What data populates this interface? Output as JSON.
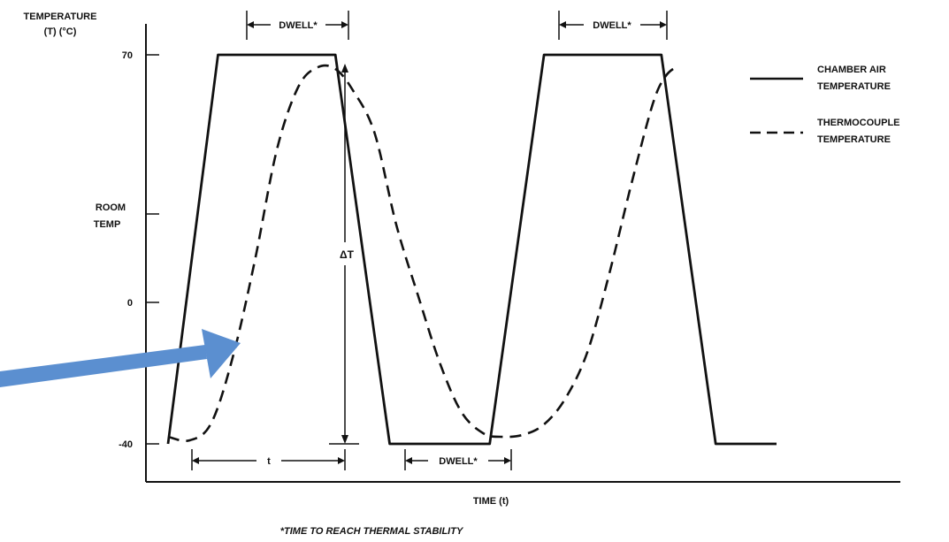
{
  "chart_data": {
    "type": "line",
    "ylabel_line1": "TEMPERATURE",
    "ylabel_line2": "(T) (°C)",
    "xlabel": "TIME (t)",
    "footnote": "*TIME TO REACH THERMAL STABILITY",
    "y_ticks": [
      {
        "value": 70,
        "label": "70"
      },
      {
        "value": 25,
        "label": "ROOM",
        "label2": "TEMP"
      },
      {
        "value": 0,
        "label": "0"
      },
      {
        "value": -40,
        "label": "-40"
      }
    ],
    "legend": [
      {
        "name": "CHAMBER AIR",
        "name2": "TEMPERATURE",
        "style": "solid"
      },
      {
        "name": "THERMOCOUPLE",
        "name2": "TEMPERATURE",
        "style": "dashed"
      }
    ],
    "series": [
      {
        "style": "solid",
        "x": [
          0,
          2.3,
          7.7,
          10.2,
          14.8,
          17.3,
          22.7,
          25.2,
          28
        ],
        "values": [
          -40,
          70,
          70,
          -40,
          -40,
          70,
          70,
          -40,
          -40
        ]
      },
      {
        "style": "dashed",
        "x": [
          0,
          1,
          2,
          3,
          4,
          5,
          6,
          6.9,
          7.7,
          8.5,
          9.5,
          10.5,
          11.5,
          12.5,
          13.5,
          14.5,
          15.3,
          16.3,
          17.3,
          18.3,
          19.3,
          20.3,
          21.3,
          22.3,
          22.9,
          23.5
        ],
        "values": [
          -38,
          -39,
          -34,
          -15,
          12,
          43,
          61,
          66.5,
          66,
          60,
          48,
          22,
          2,
          -17,
          -31,
          -37,
          -38,
          -37.5,
          -34.5,
          -27,
          -14,
          8,
          33,
          56,
          64,
          67
        ]
      }
    ],
    "annotations": {
      "dwell_label": "DWELL*",
      "t_label": "t",
      "delta_t_label": "ΔT"
    },
    "xlim": [
      0,
      28
    ],
    "ylim": [
      -40,
      70
    ]
  },
  "colors": {
    "ink": "#111111",
    "arrow": "#5b8fd0"
  }
}
